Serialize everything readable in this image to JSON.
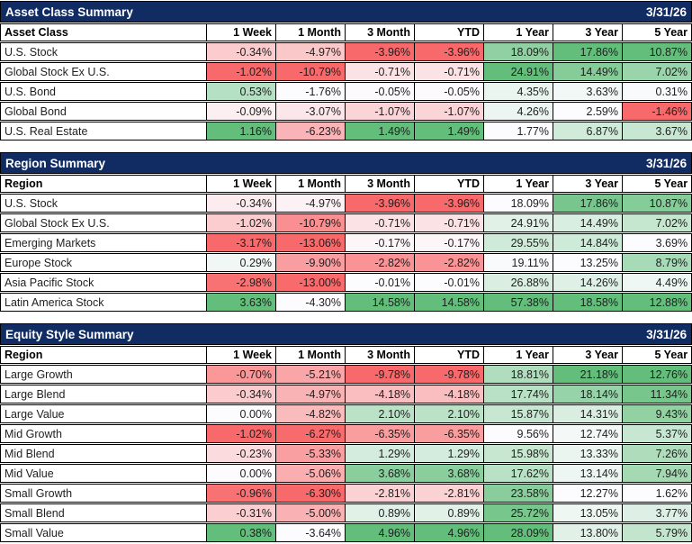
{
  "colors": {
    "title_bar_bg": "#112B63",
    "title_bar_text": "#FFFFFF",
    "table_border": "#000000",
    "cell_text": "#1F1F1F",
    "heat_scale_negative": "#F8696B",
    "heat_scale_neutral": "#FCFCFF",
    "heat_scale_positive": "#63BE7B"
  },
  "chart_data": [
    {
      "type": "heatmap",
      "title": "Asset Class Summary",
      "date": "3/31/26",
      "row_header": "Asset Class",
      "columns": [
        "1 Week",
        "1 Month",
        "3 Month",
        "YTD",
        "1 Year",
        "3 Year",
        "5 Year"
      ],
      "value_format": "percent_2dp",
      "color_scale_note": "per-column 3-color scale: min=red, zero(clamped to range)=white, max=green",
      "rows": [
        {
          "label": "U.S. Stock",
          "values": [
            -0.34,
            -4.97,
            -3.96,
            -3.96,
            18.09,
            17.86,
            10.87
          ]
        },
        {
          "label": "Global Stock Ex U.S.",
          "values": [
            -1.02,
            -10.79,
            -0.71,
            -0.71,
            24.91,
            14.49,
            7.02
          ]
        },
        {
          "label": "U.S. Bond",
          "values": [
            0.53,
            -1.76,
            -0.05,
            -0.05,
            4.35,
            3.63,
            0.31
          ]
        },
        {
          "label": "Global Bond",
          "values": [
            -0.09,
            -3.07,
            -1.07,
            -1.07,
            4.26,
            2.59,
            -1.46
          ]
        },
        {
          "label": "U.S. Real Estate",
          "values": [
            1.16,
            -6.23,
            1.49,
            1.49,
            1.77,
            6.87,
            3.67
          ]
        }
      ]
    },
    {
      "type": "heatmap",
      "title": "Region Summary",
      "date": "3/31/26",
      "row_header": "Region",
      "columns": [
        "1 Week",
        "1 Month",
        "3 Month",
        "YTD",
        "1 Year",
        "3 Year",
        "5 Year"
      ],
      "value_format": "percent_2dp",
      "color_scale_note": "per-column 3-color scale: min=red, zero(clamped to range)=white, max=green",
      "rows": [
        {
          "label": "U.S. Stock",
          "values": [
            -0.34,
            -4.97,
            -3.96,
            -3.96,
            18.09,
            17.86,
            10.87
          ]
        },
        {
          "label": "Global Stock Ex U.S.",
          "values": [
            -1.02,
            -10.79,
            -0.71,
            -0.71,
            24.91,
            14.49,
            7.02
          ]
        },
        {
          "label": "Emerging Markets",
          "values": [
            -3.17,
            -13.06,
            -0.17,
            -0.17,
            29.55,
            14.84,
            3.69
          ]
        },
        {
          "label": "Europe Stock",
          "values": [
            0.29,
            -9.9,
            -2.82,
            -2.82,
            19.11,
            13.25,
            8.79
          ]
        },
        {
          "label": "Asia Pacific Stock",
          "values": [
            -2.98,
            -13.0,
            -0.01,
            -0.01,
            26.88,
            14.26,
            4.49
          ]
        },
        {
          "label": "Latin America Stock",
          "values": [
            3.63,
            -4.3,
            14.58,
            14.58,
            57.38,
            18.58,
            12.88
          ]
        }
      ]
    },
    {
      "type": "heatmap",
      "title": "Equity Style Summary",
      "date": "3/31/26",
      "row_header": "Region",
      "columns": [
        "1 Week",
        "1 Month",
        "3 Month",
        "YTD",
        "1 Year",
        "3 Year",
        "5 Year"
      ],
      "value_format": "percent_2dp",
      "color_scale_note": "per-column 3-color scale: min=red, zero(clamped to range)=white, max=green",
      "rows": [
        {
          "label": "Large Growth",
          "values": [
            -0.7,
            -5.21,
            -9.78,
            -9.78,
            18.81,
            21.18,
            12.76
          ]
        },
        {
          "label": "Large Blend",
          "values": [
            -0.34,
            -4.97,
            -4.18,
            -4.18,
            17.74,
            18.14,
            11.34
          ]
        },
        {
          "label": "Large Value",
          "values": [
            0.0,
            -4.82,
            2.1,
            2.1,
            15.87,
            14.31,
            9.43
          ]
        },
        {
          "label": "Mid Growth",
          "values": [
            -1.02,
            -6.27,
            -6.35,
            -6.35,
            9.56,
            12.74,
            5.37
          ]
        },
        {
          "label": "Mid Blend",
          "values": [
            -0.23,
            -5.33,
            1.29,
            1.29,
            15.98,
            13.33,
            7.26
          ]
        },
        {
          "label": "Mid Value",
          "values": [
            0.0,
            -5.06,
            3.68,
            3.68,
            17.62,
            13.14,
            7.94
          ]
        },
        {
          "label": "Small Growth",
          "values": [
            -0.96,
            -6.3,
            -2.81,
            -2.81,
            23.58,
            12.27,
            1.62
          ]
        },
        {
          "label": "Small Blend",
          "values": [
            -0.31,
            -5.0,
            0.89,
            0.89,
            25.72,
            13.05,
            3.77
          ]
        },
        {
          "label": "Small Value",
          "values": [
            0.38,
            -3.64,
            4.96,
            4.96,
            28.09,
            13.8,
            5.79
          ]
        }
      ]
    }
  ]
}
